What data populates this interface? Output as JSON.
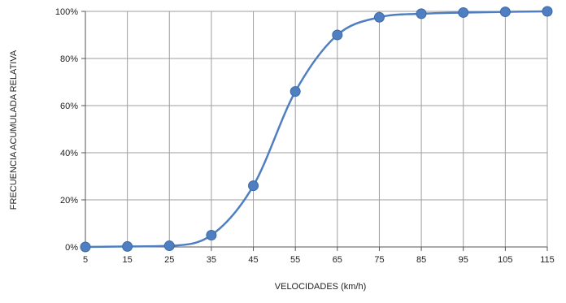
{
  "chart_data": {
    "type": "line",
    "title": "",
    "xlabel": "VELOCIDADES (km/h)",
    "ylabel": "FRECUENCIA ACUMULADA RELATIVA",
    "x_ticks": [
      5,
      15,
      25,
      35,
      45,
      55,
      65,
      75,
      85,
      95,
      105,
      115
    ],
    "y_ticks": [
      "0%",
      "20%",
      "40%",
      "60%",
      "80%",
      "100%"
    ],
    "xlim": [
      5,
      115
    ],
    "ylim": [
      0,
      100
    ],
    "grid": true,
    "legend": "none",
    "series": [
      {
        "x": [
          5,
          15,
          25,
          35,
          45,
          55,
          65,
          75,
          85,
          95,
          105,
          115
        ],
        "y": [
          0,
          0.2,
          0.5,
          5,
          26,
          66,
          90,
          97.5,
          99,
          99.5,
          99.8,
          100
        ]
      }
    ],
    "colors": {
      "line": "#4f7fc1",
      "marker": "#4f7fc1",
      "grid": "#9e9e9e",
      "axis": "#555555"
    }
  }
}
